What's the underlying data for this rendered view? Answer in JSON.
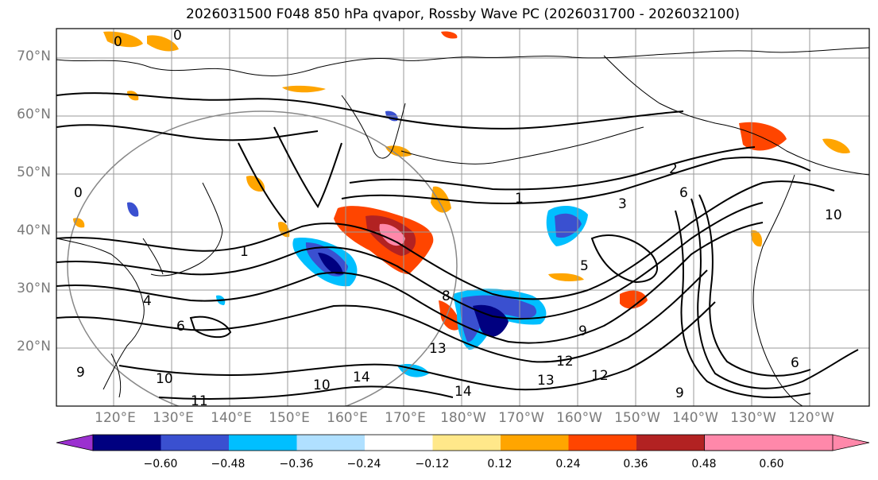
{
  "title": "2026031500 F048 850 hPa qvapor, Rossby Wave PC (2026031700 - 2026032100)",
  "latitude_labels": [
    "70°N",
    "60°N",
    "50°N",
    "40°N",
    "30°N",
    "20°N"
  ],
  "longitude_labels": [
    "120°E",
    "130°E",
    "140°E",
    "150°E",
    "160°E",
    "170°E",
    "180°W",
    "170°W",
    "160°W",
    "150°W",
    "140°W",
    "130°W",
    "120°W"
  ],
  "colorbar": {
    "tick_labels": [
      "−0.60",
      "−0.48",
      "−0.36",
      "−0.24",
      "−0.12",
      "0.12",
      "0.24",
      "0.36",
      "0.48",
      "0.60"
    ],
    "colors": [
      "#9b30d0",
      "#000080",
      "#3a50d0",
      "#00bfff",
      "#b0e0ff",
      "#ffffff",
      "#ffe88a",
      "#ffa500",
      "#ff4500",
      "#b22222",
      "#ff88aa"
    ]
  },
  "contour_labels": [
    "0",
    "0",
    "0",
    "1",
    "1",
    "2",
    "3",
    "4",
    "5",
    "6",
    "6",
    "6",
    "8",
    "9",
    "9",
    "9",
    "10",
    "10",
    "11",
    "12",
    "12",
    "13",
    "13",
    "14",
    "14",
    "10"
  ],
  "colors": {
    "coast": "#000000",
    "grid": "#9a9a9a",
    "contour": "#000000",
    "circle": "#888888"
  }
}
